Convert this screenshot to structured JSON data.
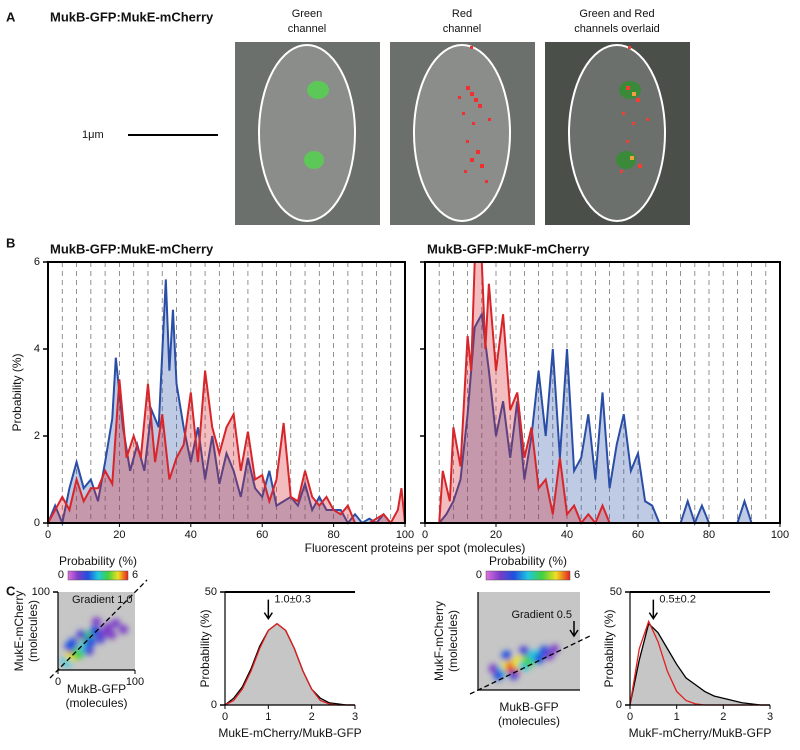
{
  "panel_a": {
    "label": "A",
    "title": "MukB-GFP:MukE-mCherry",
    "images": [
      [
        "Green",
        "channel"
      ],
      [
        "Red",
        "channel"
      ],
      [
        "Green and Red",
        "channels overlaid"
      ]
    ],
    "scale_bar": "1μm"
  },
  "panel_b": {
    "label": "B",
    "xlabel": "Fluorescent proteins per spot (molecules)"
  },
  "panel_c": {
    "label": "C"
  },
  "chart_data": [
    {
      "type": "area",
      "title": "MukB-GFP:MukE-mCherry",
      "ylabel": "Probability (%)",
      "xlim": [
        0,
        100
      ],
      "xticks": [
        0,
        20,
        40,
        60,
        80,
        100
      ],
      "ylim": [
        0,
        6
      ],
      "yticks": [
        0,
        2,
        4,
        6
      ],
      "xgrid": [
        4,
        8,
        12,
        16,
        20,
        24,
        28,
        32,
        36,
        40,
        44,
        48,
        52,
        56,
        60,
        64,
        68,
        72,
        76,
        80,
        84,
        88,
        92,
        96
      ],
      "series": [
        {
          "color": "#2a4ea6",
          "x": [
            0,
            2,
            4,
            6,
            8,
            10,
            12,
            14,
            16,
            18,
            19,
            21,
            23,
            25,
            27,
            29,
            31,
            33,
            34,
            35,
            36,
            38,
            40,
            42,
            44,
            46,
            48,
            50,
            52,
            54,
            56,
            58,
            60,
            62,
            64,
            66,
            68,
            70,
            72,
            74,
            76,
            78,
            80,
            82,
            84,
            86,
            88,
            90,
            92,
            94,
            96,
            100
          ],
          "values": [
            0,
            0.4,
            0,
            0.8,
            1.4,
            0.8,
            1.0,
            0.5,
            1.4,
            2.4,
            3.8,
            2.2,
            1.2,
            1.8,
            1.2,
            2.6,
            2.2,
            5.6,
            3.5,
            4.9,
            3.2,
            2.2,
            1.4,
            2.2,
            1.0,
            2.0,
            0.9,
            1.6,
            1.2,
            0.6,
            1.5,
            0.8,
            0.6,
            1.2,
            0.4,
            0.5,
            0.6,
            0.4,
            0.9,
            0.3,
            0.6,
            0.3,
            0.3,
            0.3,
            0,
            0.2,
            0,
            0.1,
            0,
            0.2,
            0,
            0
          ]
        },
        {
          "color": "#d7262b",
          "x": [
            0,
            4,
            6,
            8,
            10,
            12,
            14,
            16,
            18,
            20,
            22,
            24,
            26,
            28,
            30,
            32,
            34,
            36,
            38,
            40,
            42,
            44,
            46,
            48,
            50,
            52,
            54,
            56,
            58,
            60,
            62,
            64,
            66,
            68,
            70,
            72,
            74,
            76,
            78,
            80,
            82,
            84,
            86,
            90,
            94,
            96,
            98,
            99,
            100
          ],
          "values": [
            0,
            0.6,
            0.3,
            1.0,
            0.5,
            0.8,
            0.8,
            1.2,
            0.9,
            3.3,
            1.5,
            2.0,
            1.5,
            3.2,
            1.4,
            2.5,
            1.0,
            1.5,
            1.8,
            3.0,
            1.4,
            3.5,
            2.2,
            1.6,
            2.2,
            2.5,
            1.2,
            2.1,
            1.0,
            1.1,
            0.5,
            1.0,
            2.3,
            0.6,
            0.5,
            1.2,
            0.6,
            0.4,
            0.6,
            0.3,
            0.2,
            0.4,
            0,
            0,
            0.2,
            0,
            0.3,
            0.8,
            0
          ]
        }
      ]
    },
    {
      "type": "area",
      "title": "MukB-GFP:MukF-mCherry",
      "xlim": [
        0,
        100
      ],
      "xticks": [
        0,
        20,
        40,
        60,
        80,
        100
      ],
      "ylim": [
        0,
        6
      ],
      "yticks": [
        0,
        2,
        4,
        6
      ],
      "ytick_labels": false,
      "xgrid": [
        4,
        8,
        12,
        16,
        20,
        24,
        28,
        32,
        36,
        40,
        44,
        48,
        52,
        56,
        60,
        64,
        68,
        72,
        76,
        80,
        84,
        88,
        92,
        96
      ],
      "series": [
        {
          "color": "#2a4ea6",
          "x": [
            0,
            4,
            6,
            8,
            10,
            12,
            14,
            16,
            18,
            20,
            22,
            24,
            26,
            28,
            30,
            32,
            34,
            36,
            38,
            40,
            42,
            44,
            46,
            48,
            50,
            52,
            54,
            56,
            58,
            60,
            62,
            64,
            66,
            72,
            74,
            76,
            78,
            80,
            88,
            90,
            92,
            100
          ],
          "values": [
            0,
            0,
            0.2,
            0.5,
            1.0,
            2.5,
            4.5,
            4.8,
            3.5,
            2.0,
            2.8,
            1.5,
            2.8,
            1.0,
            2.0,
            3.5,
            2.0,
            4.0,
            1.5,
            4.0,
            1.2,
            1.5,
            2.5,
            1.0,
            3.0,
            0.8,
            1.8,
            2.5,
            1.2,
            1.6,
            0.5,
            0.4,
            0,
            0,
            0.5,
            0,
            0.4,
            0,
            0,
            0.5,
            0,
            0
          ]
        },
        {
          "color": "#d7262b",
          "x": [
            0,
            4,
            5,
            7,
            8,
            10,
            12,
            13,
            14,
            16,
            17,
            18,
            20,
            22,
            24,
            26,
            28,
            30,
            32,
            34,
            36,
            38,
            40,
            42,
            44,
            46,
            48,
            50,
            52,
            100
          ],
          "values": [
            0,
            0,
            1.2,
            0.5,
            2.2,
            1.3,
            4.3,
            3.5,
            6,
            6,
            4,
            5.5,
            3.5,
            4.8,
            2.6,
            3.0,
            1.5,
            2.2,
            0.8,
            1.0,
            0.2,
            1.5,
            0.2,
            0.4,
            0,
            0.2,
            0,
            0.4,
            0,
            0
          ]
        }
      ]
    },
    {
      "type": "density",
      "xlabel": [
        "MukB-GFP",
        "(molecules)"
      ],
      "ylabel": [
        "MukE-mCherry",
        "(molecules)"
      ],
      "xlim": [
        0,
        100
      ],
      "xticks": [
        0,
        100
      ],
      "ylim": [
        0,
        100
      ],
      "yticks": [
        100
      ],
      "background": "#c6c6c6",
      "colormap": [
        "#e070e0",
        "#7a3cc8",
        "#1e50e0",
        "#20c8e0",
        "#40d040",
        "#f0e020",
        "#e82020"
      ],
      "clim": [
        0,
        6
      ],
      "colorbar": {
        "label": "Probability (%)",
        "ticks": [
          0,
          6
        ]
      },
      "annotation": {
        "text": "Gradient 1.0",
        "slope": 1.0
      },
      "x": [
        12,
        18,
        22,
        26,
        30,
        34,
        38,
        20,
        42,
        48,
        55,
        60,
        65,
        70,
        85,
        50,
        30,
        15,
        40,
        75
      ],
      "y": [
        12,
        20,
        28,
        22,
        35,
        30,
        42,
        35,
        36,
        50,
        40,
        48,
        55,
        45,
        52,
        62,
        45,
        30,
        25,
        60
      ],
      "values": [
        3,
        5,
        6,
        4,
        5,
        3,
        4,
        2,
        2,
        2,
        1.5,
        1,
        1,
        1,
        1,
        1,
        1.5,
        2,
        1.5,
        1
      ]
    },
    {
      "type": "line",
      "ylabel": "Probability (%)",
      "xlabel": "MukE-mCherry/MukB-GFP",
      "xlim": [
        0,
        3
      ],
      "xticks": [
        0,
        1,
        2,
        3
      ],
      "ylim": [
        0,
        50
      ],
      "yticks": [
        0,
        50
      ],
      "annotation": {
        "text": "1.0±0.3",
        "x": 1.0
      },
      "series": [
        {
          "color": "#000000",
          "fill": "#c6c6c6",
          "x": [
            0,
            0.2,
            0.4,
            0.6,
            0.8,
            1.0,
            1.2,
            1.4,
            1.6,
            1.8,
            2.0,
            2.2,
            2.4,
            2.6,
            2.8,
            3.0
          ],
          "values": [
            0,
            3,
            8,
            16,
            26,
            33,
            36,
            33,
            25,
            15,
            7,
            3,
            1,
            0.5,
            0,
            0
          ]
        },
        {
          "color": "#e02020",
          "x": [
            0,
            0.2,
            0.4,
            0.6,
            0.8,
            1.0,
            1.2,
            1.4,
            1.6,
            1.8,
            2.0,
            2.2,
            2.4,
            2.6,
            2.8,
            3.0
          ],
          "values": [
            0,
            2,
            7,
            15,
            25,
            33,
            36,
            33,
            25,
            15,
            7,
            2,
            0.5,
            0,
            0,
            0
          ]
        }
      ]
    },
    {
      "type": "density",
      "xlabel": [
        "MukB-GFP",
        "(molecules)"
      ],
      "ylabel": [
        "MukF-mCherry",
        "(molecules)"
      ],
      "xlim": [
        0,
        100
      ],
      "ylim": [
        0,
        100
      ],
      "background": "#c6c6c6",
      "colormap": [
        "#e070e0",
        "#7a3cc8",
        "#1e50e0",
        "#20c8e0",
        "#40d040",
        "#f0e020",
        "#e82020"
      ],
      "clim": [
        0,
        6
      ],
      "colorbar": {
        "label": "Probability (%)",
        "ticks": [
          0,
          6
        ]
      },
      "annotation": {
        "text": "Gradient 0.5",
        "slope": 0.5
      },
      "x": [
        25,
        30,
        35,
        40,
        45,
        50,
        55,
        60,
        20,
        28,
        65,
        70,
        45,
        35,
        75,
        15
      ],
      "y": [
        20,
        25,
        22,
        28,
        25,
        30,
        35,
        32,
        15,
        35,
        40,
        35,
        40,
        15,
        42,
        22
      ],
      "values": [
        3,
        5,
        6,
        5,
        3,
        4,
        3,
        2,
        2,
        2,
        2,
        1,
        1.5,
        1.5,
        1,
        1
      ]
    },
    {
      "type": "line",
      "ylabel": "Probability (%)",
      "xlabel": "MukF-mCherry/MukB-GFP",
      "xlim": [
        0,
        3
      ],
      "xticks": [
        0,
        1,
        2,
        3
      ],
      "ylim": [
        0,
        50
      ],
      "yticks": [
        0,
        50
      ],
      "annotation": {
        "text": "0.5±0.2",
        "x": 0.5
      },
      "series": [
        {
          "color": "#000000",
          "fill": "#c6c6c6",
          "x": [
            0,
            0.2,
            0.4,
            0.6,
            0.8,
            1.0,
            1.2,
            1.4,
            1.6,
            1.8,
            2.0,
            2.2,
            2.4,
            2.6,
            2.8,
            3.0
          ],
          "values": [
            0,
            20,
            36,
            32,
            25,
            18,
            12,
            9,
            6,
            4,
            3,
            2,
            1,
            0.5,
            0,
            0
          ]
        },
        {
          "color": "#e02020",
          "x": [
            0,
            0.2,
            0.4,
            0.6,
            0.8,
            1.0,
            1.2,
            1.4,
            1.6,
            1.8,
            2.0,
            2.2,
            2.4,
            2.6,
            2.8,
            3.0
          ],
          "values": [
            0,
            25,
            37,
            28,
            15,
            6,
            2,
            0.5,
            0,
            0,
            0,
            0,
            0,
            0,
            0,
            0
          ]
        }
      ]
    }
  ]
}
